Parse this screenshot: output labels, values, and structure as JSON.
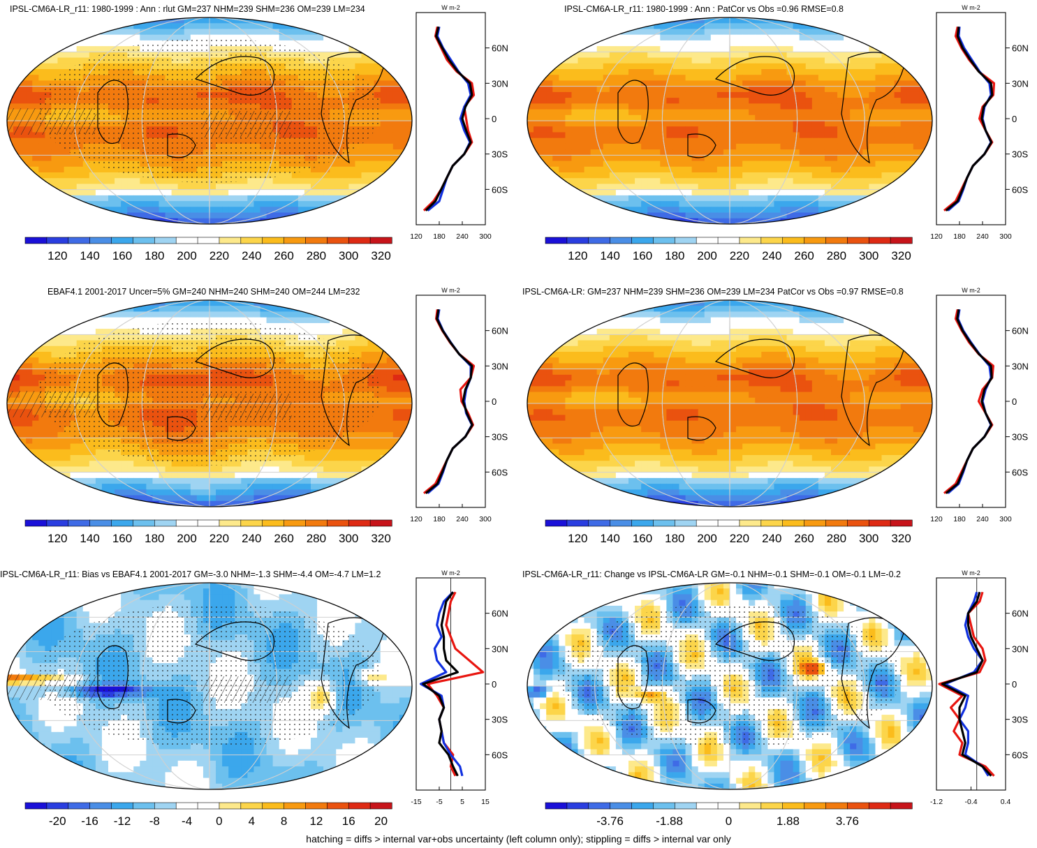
{
  "palettes": {
    "abs": [
      "#1a10d8",
      "#2a3ee0",
      "#3f6be6",
      "#4a8ee6",
      "#3ba7ec",
      "#6cc0ee",
      "#9fd4f2",
      "#ffffff",
      "#ffffff",
      "#fde98b",
      "#fcd54a",
      "#fbbc1c",
      "#f89a10",
      "#f27a0e",
      "#ea520f",
      "#de2a14",
      "#c7141a"
    ],
    "diff": [
      "#1a10d8",
      "#2a3ee0",
      "#3f6be6",
      "#4a8ee6",
      "#3ba7ec",
      "#6cc0ee",
      "#9fd4f2",
      "#ffffff",
      "#ffffff",
      "#fde98b",
      "#fcd54a",
      "#fbbc1c",
      "#f89a10",
      "#f27a0e",
      "#ea520f",
      "#de2a14",
      "#c7141a"
    ]
  },
  "profile_colors": {
    "obs": "#e8150f",
    "model": "#1030e0",
    "combined": "#000000"
  },
  "chart_data": [
    {
      "id": "p1",
      "type": "heatmap",
      "title": "IPSL-CM6A-LR_r11: 1980-1999 : Ann : rlut GM=237 NHM=239 SHM=236 OM=239 LM=234",
      "colorbar_ticks": [
        "120",
        "140",
        "160",
        "180",
        "200",
        "220",
        "240",
        "260",
        "280",
        "300",
        "320"
      ],
      "palette": "abs",
      "field": "abs",
      "stipple": true,
      "hatch": true,
      "profile": {
        "unit": "W m-2",
        "xlim": [
          120,
          300
        ],
        "xticks": [
          "120",
          "180",
          "240",
          "300"
        ],
        "ytick_labels": [
          "60N",
          "30N",
          "0",
          "30S",
          "60S"
        ],
        "lat": [
          78,
          70,
          60,
          50,
          40,
          30,
          20,
          10,
          0,
          -10,
          -20,
          -30,
          -40,
          -50,
          -60,
          -70,
          -78
        ],
        "series": [
          {
            "role": "obs",
            "values": [
              175,
              170,
              185,
              200,
              225,
              265,
              270,
              245,
              250,
              255,
              265,
              245,
              215,
              200,
              185,
              165,
              140
            ]
          },
          {
            "role": "model",
            "values": [
              180,
              175,
              190,
              210,
              230,
              255,
              262,
              245,
              235,
              245,
              260,
              245,
              215,
              200,
              190,
              180,
              150
            ]
          },
          {
            "role": "combined",
            "values": [
              178,
              172,
              188,
              205,
              228,
              260,
              265,
              248,
              240,
              250,
              262,
              245,
              215,
              200,
              185,
              170,
              145
            ]
          }
        ]
      }
    },
    {
      "id": "p2",
      "type": "heatmap",
      "title": "IPSL-CM6A-LR_r11: 1980-1999 : Ann : PatCor vs Obs =0.96 RMSE=0.8",
      "colorbar_ticks": [
        "120",
        "140",
        "160",
        "180",
        "200",
        "220",
        "240",
        "260",
        "280",
        "300",
        "320"
      ],
      "palette": "abs",
      "field": "abs",
      "stipple": false,
      "hatch": false,
      "profile": {
        "unit": "W m-2",
        "xlim": [
          120,
          300
        ],
        "xticks": [
          "120",
          "180",
          "240",
          "300"
        ],
        "ytick_labels": [
          "60N",
          "30N",
          "0",
          "30S",
          "60S"
        ],
        "lat": [
          78,
          70,
          60,
          50,
          40,
          30,
          20,
          10,
          0,
          -10,
          -20,
          -30,
          -40,
          -50,
          -60,
          -70,
          -78
        ],
        "series": [
          {
            "role": "obs",
            "values": [
              175,
              170,
              185,
              205,
              230,
              270,
              268,
              240,
              232,
              248,
              265,
              245,
              215,
              200,
              185,
              170,
              140
            ]
          },
          {
            "role": "model",
            "values": [
              180,
              178,
              192,
              212,
              232,
              258,
              262,
              245,
              240,
              248,
              262,
              245,
              215,
              200,
              190,
              178,
              150
            ]
          },
          {
            "role": "combined",
            "values": [
              178,
              175,
              188,
              208,
              230,
              262,
              265,
              243,
              238,
              248,
              263,
              245,
              215,
              200,
              188,
              175,
              145
            ]
          }
        ]
      }
    },
    {
      "id": "p3",
      "type": "heatmap",
      "title": "EBAF4.1 2001-2017 Uncer=5% GM=240 NHM=240 SHM=240 OM=244 LM=232",
      "colorbar_ticks": [
        "120",
        "140",
        "160",
        "180",
        "200",
        "220",
        "240",
        "260",
        "280",
        "300",
        "320"
      ],
      "palette": "abs",
      "field": "abs2",
      "stipple": true,
      "hatch": true,
      "profile": {
        "unit": "W m-2",
        "xlim": [
          120,
          300
        ],
        "xticks": [
          "120",
          "180",
          "240",
          "300"
        ],
        "ytick_labels": [
          "60N",
          "30N",
          "0",
          "30S",
          "60S"
        ],
        "lat": [
          78,
          70,
          60,
          50,
          40,
          30,
          20,
          10,
          0,
          -10,
          -20,
          -30,
          -40,
          -50,
          -60,
          -70,
          -78
        ],
        "series": [
          {
            "role": "obs",
            "values": [
              175,
              172,
              188,
              208,
              232,
              270,
              262,
              235,
              238,
              255,
              268,
              248,
              215,
              200,
              185,
              170,
              140
            ]
          },
          {
            "role": "model",
            "values": [
              180,
              176,
              190,
              210,
              232,
              262,
              262,
              250,
              245,
              250,
              265,
              248,
              215,
              200,
              190,
              178,
              150
            ]
          },
          {
            "role": "combined",
            "values": [
              178,
              174,
              189,
              209,
              232,
              265,
              262,
              248,
              242,
              252,
              266,
              248,
              215,
              200,
              188,
              175,
              145
            ]
          }
        ]
      }
    },
    {
      "id": "p4",
      "type": "heatmap",
      "title": "IPSL-CM6A-LR: GM=237 NHM=239 SHM=236 OM=239 LM=234 PatCor vs Obs =0.97 RMSE=0.8",
      "colorbar_ticks": [
        "120",
        "140",
        "160",
        "180",
        "200",
        "220",
        "240",
        "260",
        "280",
        "300",
        "320"
      ],
      "palette": "abs",
      "field": "abs",
      "stipple": false,
      "hatch": false,
      "profile": {
        "unit": "W m-2",
        "xlim": [
          120,
          300
        ],
        "xticks": [
          "120",
          "180",
          "240",
          "300"
        ],
        "ytick_labels": [
          "60N",
          "30N",
          "0",
          "30S",
          "60S"
        ],
        "lat": [
          78,
          70,
          60,
          50,
          40,
          30,
          20,
          10,
          0,
          -10,
          -20,
          -30,
          -40,
          -50,
          -60,
          -70,
          -78
        ],
        "series": [
          {
            "role": "obs",
            "values": [
              175,
              170,
              186,
              205,
              230,
              268,
              265,
              240,
              230,
              248,
              265,
              245,
              215,
              200,
              185,
              170,
              140
            ]
          },
          {
            "role": "model",
            "values": [
              180,
              176,
              190,
              210,
              232,
              258,
              262,
              248,
              240,
              248,
              262,
              245,
              215,
              200,
              190,
              178,
              150
            ]
          },
          {
            "role": "combined",
            "values": [
              178,
              174,
              188,
              208,
              231,
              262,
              264,
              245,
              238,
              248,
              263,
              245,
              215,
              200,
              188,
              175,
              145
            ]
          }
        ]
      }
    },
    {
      "id": "p5",
      "type": "heatmap",
      "title": "IPSL-CM6A-LR_r11: Bias vs EBAF4.1 2001-2017 GM=-3.0 NHM=-1.3 SHM=-4.4 OM=-4.7 LM=1.2",
      "colorbar_ticks": [
        "-20",
        "-16",
        "-12",
        "-8",
        "-4",
        "0",
        "4",
        "8",
        "12",
        "16",
        "20"
      ],
      "palette": "diff",
      "field": "bias",
      "stipple": true,
      "hatch": true,
      "profile": {
        "unit": "W m-2",
        "xlim": [
          -15,
          15
        ],
        "xticks": [
          "-15",
          "-5",
          "5",
          "15"
        ],
        "ytick_labels": [
          "60N",
          "30N",
          "0",
          "30S",
          "60S"
        ],
        "lat": [
          78,
          70,
          60,
          50,
          40,
          30,
          20,
          10,
          0,
          -10,
          -20,
          -30,
          -40,
          -50,
          -60,
          -70,
          -78
        ],
        "series": [
          {
            "role": "obs",
            "values": [
              2,
              0,
              -1,
              -2,
              0,
              2,
              8,
              14,
              -10,
              -6,
              -3,
              -5,
              -4,
              -3,
              1,
              0,
              2
            ]
          },
          {
            "role": "model",
            "values": [
              1,
              -3,
              -5,
              -6,
              -4,
              -7,
              -6,
              -2,
              -13,
              -4,
              -3,
              -5,
              -4,
              -3,
              0,
              4,
              5
            ]
          },
          {
            "role": "combined",
            "values": [
              1,
              -2,
              -3,
              -4,
              -3,
              -3,
              -2,
              3,
              -12,
              -5,
              -3,
              -5,
              -4,
              -5,
              -1,
              1,
              3
            ]
          }
        ]
      }
    },
    {
      "id": "p6",
      "type": "heatmap",
      "title": "IPSL-CM6A-LR_r11: Change vs IPSL-CM6A-LR GM=-0.1 NHM=-0.1 SHM=-0.1 OM=-0.1 LM=-0.2",
      "colorbar_ticks": [
        "-3.76",
        "-1.88",
        "0",
        "1.88",
        "3.76"
      ],
      "palette": "diff",
      "field": "change",
      "stipple": true,
      "hatch": false,
      "profile": {
        "unit": "W m-2",
        "xlim": [
          -1.4,
          1.0
        ],
        "xticks": [
          "-1.2",
          "-0.4",
          "0.4"
        ],
        "ytick_labels": [
          "60N",
          "30N",
          "0",
          "30S",
          "60S"
        ],
        "lat": [
          78,
          70,
          60,
          50,
          40,
          30,
          20,
          10,
          0,
          -10,
          -20,
          -30,
          -40,
          -50,
          -60,
          -70,
          -78
        ],
        "series": [
          {
            "role": "obs",
            "values": [
              0.2,
              0.1,
              -0.3,
              -0.2,
              -0.1,
              0.2,
              0.3,
              0.1,
              -1.3,
              -0.5,
              -0.9,
              -0.6,
              -0.8,
              -0.5,
              -0.6,
              0.3,
              0.6
            ]
          },
          {
            "role": "model",
            "values": [
              0,
              -0.1,
              -0.3,
              -0.4,
              -0.3,
              -0.1,
              0.2,
              -0.1,
              -1.1,
              -0.3,
              -0.4,
              -0.6,
              -0.3,
              -0.3,
              -0.4,
              0.2,
              0.4
            ]
          },
          {
            "role": "combined",
            "values": [
              0.1,
              0,
              -0.3,
              -0.3,
              -0.2,
              0,
              0.2,
              0,
              -1.2,
              -0.4,
              -0.6,
              -0.6,
              -0.5,
              -0.4,
              -0.5,
              0.2,
              0.5
            ]
          }
        ]
      }
    }
  ],
  "footer": "hatching = diffs > internal var+obs uncertainty (left column only); stippling = diffs > internal var only"
}
